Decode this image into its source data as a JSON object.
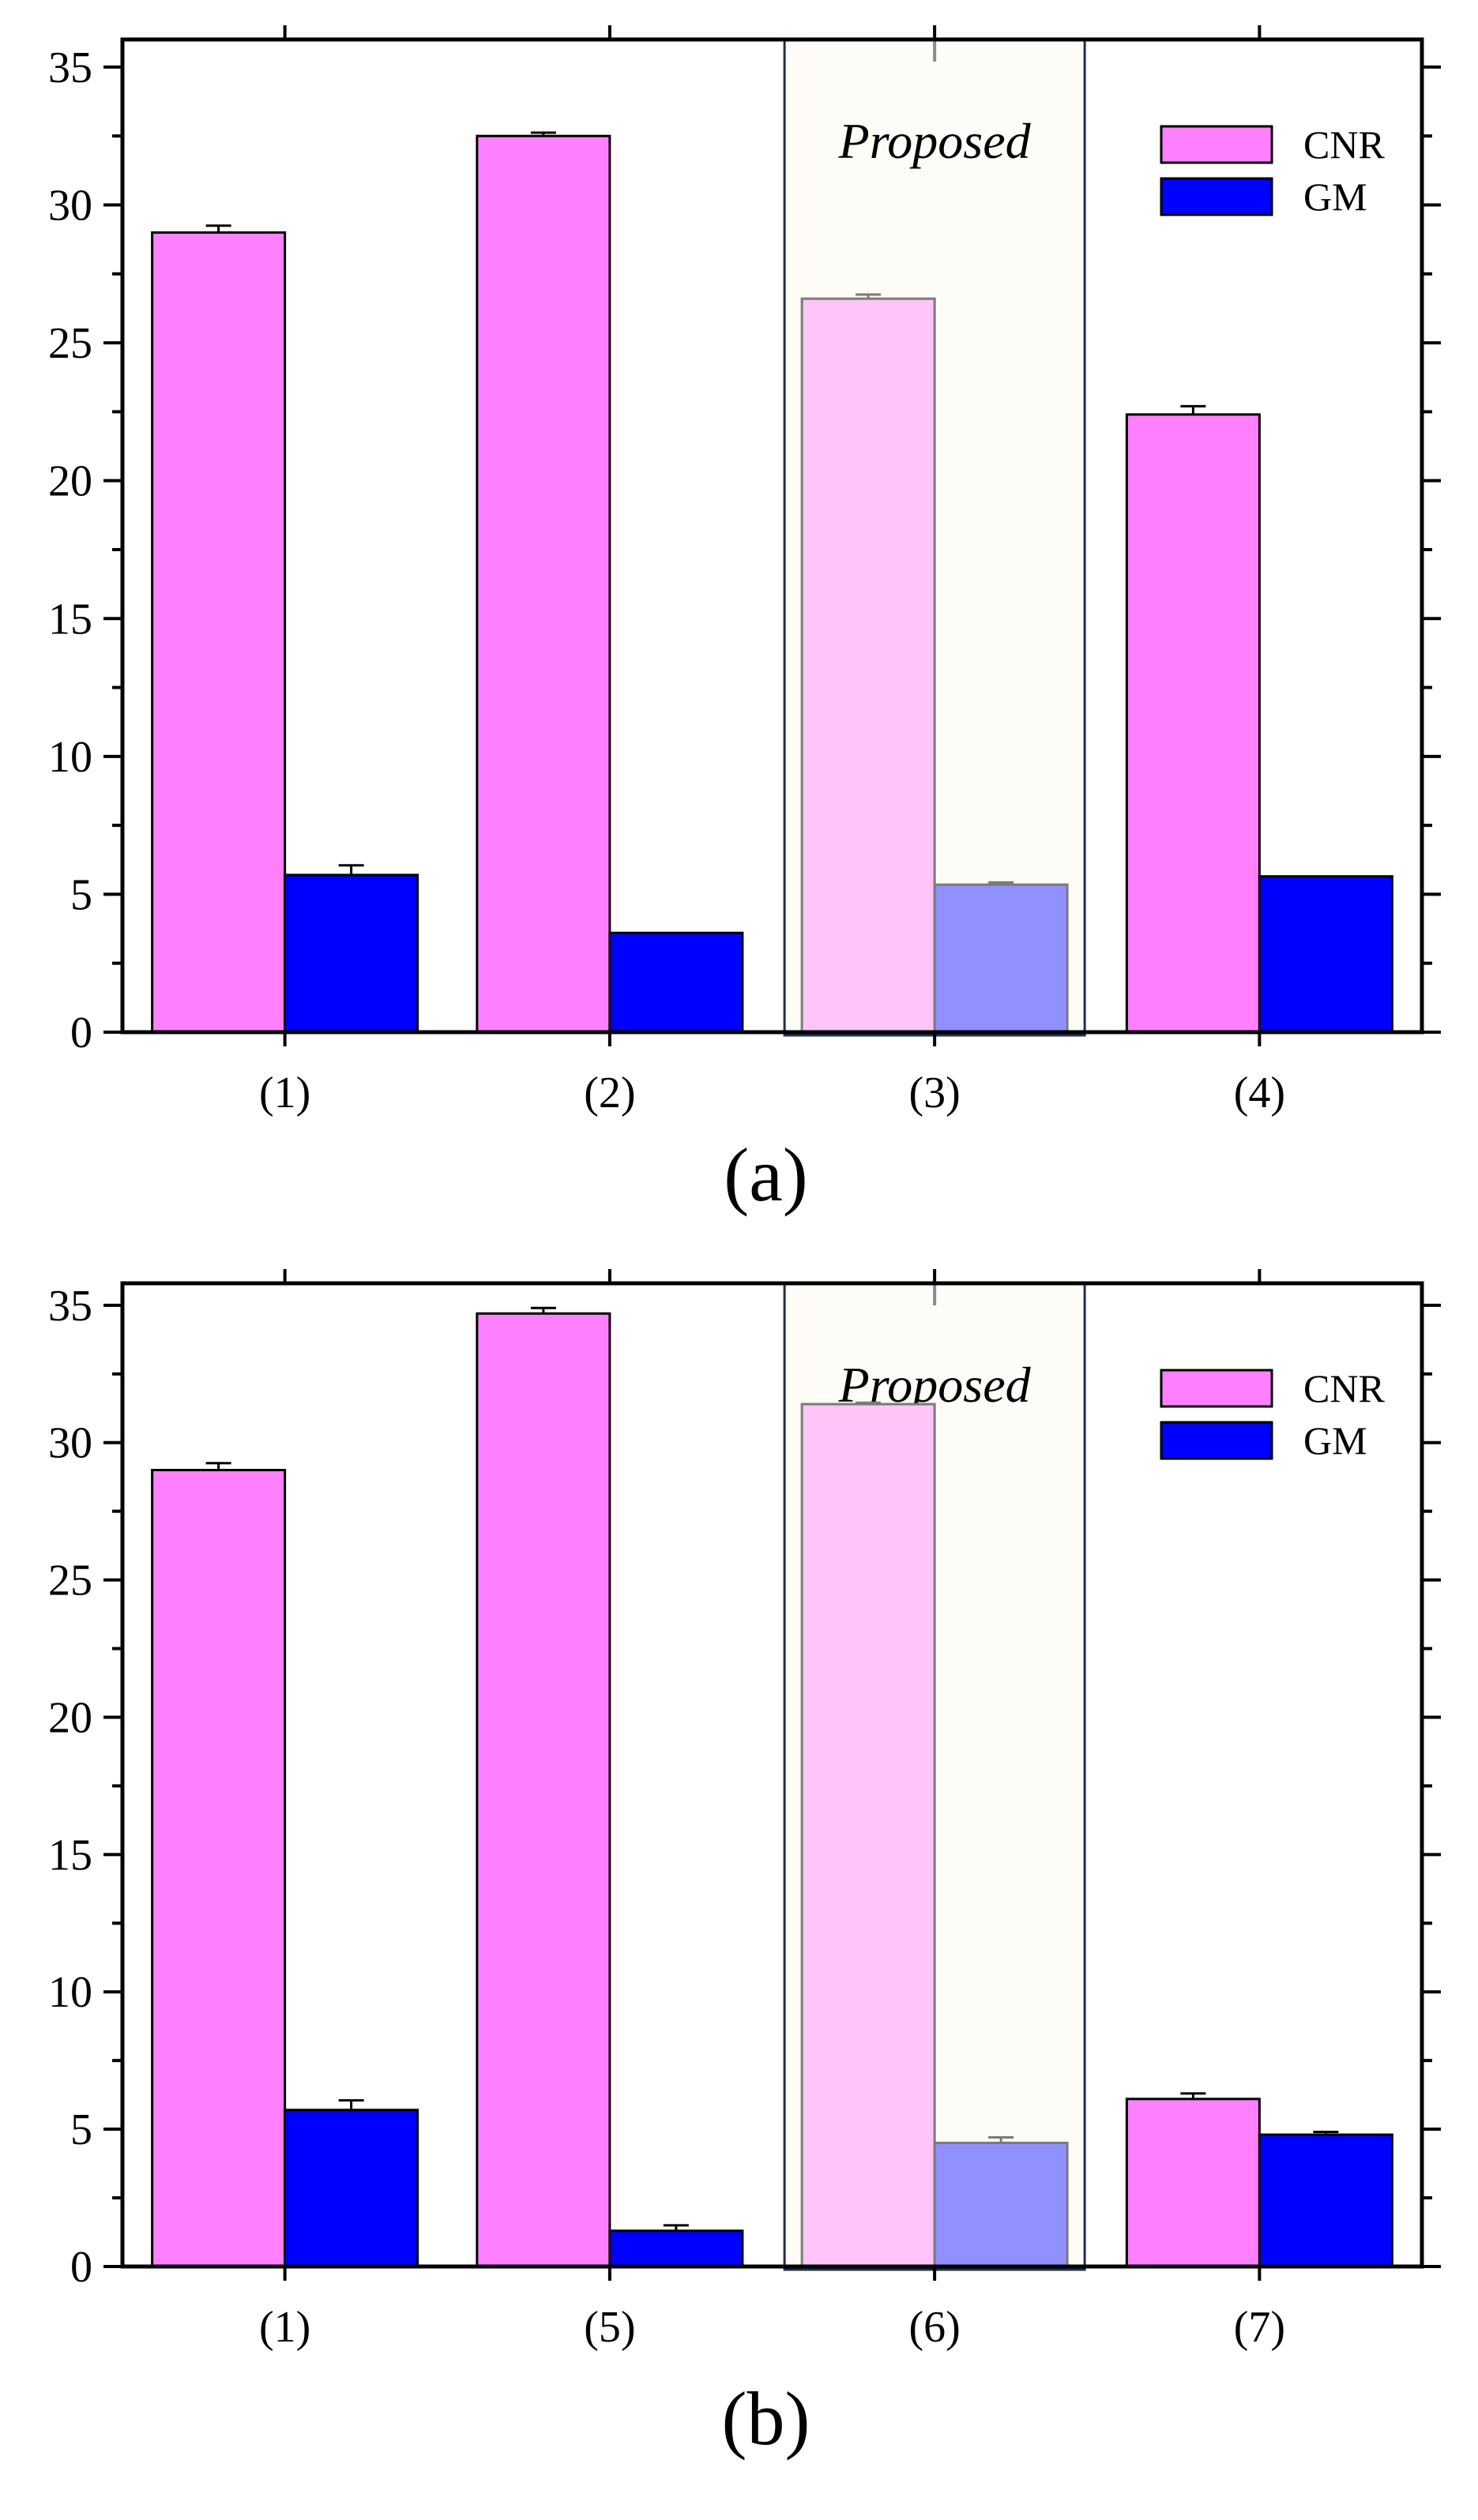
{
  "colors": {
    "cnr": "#ff80ff",
    "gm": "#0000ff",
    "cnr_proposed": "#ffc4f8",
    "gm_proposed": "#9090ff",
    "proposed_bg": "#fdfcf6",
    "proposed_border": "#1f2f4a",
    "axis": "#000000"
  },
  "chart_data": [
    {
      "type": "bar",
      "panel_label": "(a)",
      "categories": [
        "(1)",
        "(2)",
        "(3)",
        "(4)"
      ],
      "series": [
        {
          "name": "CNR",
          "values": [
            29.0,
            32.5,
            26.6,
            22.4
          ],
          "errors": [
            0.25,
            0.12,
            0.15,
            0.3
          ]
        },
        {
          "name": "GM",
          "values": [
            5.7,
            3.6,
            5.35,
            5.65
          ],
          "errors": [
            0.35,
            0.0,
            0.08,
            0.0
          ]
        }
      ],
      "highlight": {
        "category_index": 2,
        "label": "Proposed"
      },
      "ylim": [
        0,
        36
      ],
      "yticks": [
        0,
        5,
        10,
        15,
        20,
        25,
        30,
        35
      ],
      "legend": [
        "CNR",
        "GM"
      ],
      "legend_position": "top-right",
      "xlabel": "",
      "ylabel": ""
    },
    {
      "type": "bar",
      "panel_label": "(b)",
      "categories": [
        "(1)",
        "(5)",
        "(6)",
        "(7)"
      ],
      "series": [
        {
          "name": "CNR",
          "values": [
            29.0,
            34.7,
            31.4,
            6.1
          ],
          "errors": [
            0.25,
            0.2,
            0.05,
            0.2
          ]
        },
        {
          "name": "GM",
          "values": [
            5.7,
            1.3,
            4.5,
            4.8
          ],
          "errors": [
            0.35,
            0.2,
            0.2,
            0.1
          ]
        }
      ],
      "highlight": {
        "category_index": 2,
        "label": "Proposed"
      },
      "ylim": [
        0,
        35.8
      ],
      "yticks": [
        0,
        5,
        10,
        15,
        20,
        25,
        30,
        35
      ],
      "legend": [
        "CNR",
        "GM"
      ],
      "legend_position": "top-right",
      "xlabel": "",
      "ylabel": ""
    }
  ]
}
